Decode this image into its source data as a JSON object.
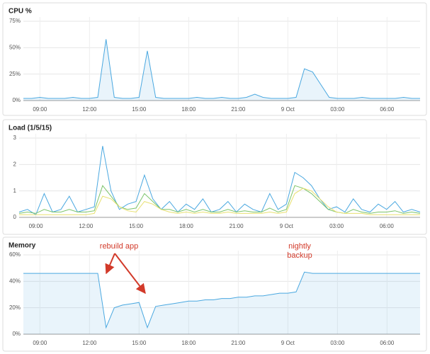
{
  "chart_data": [
    {
      "type": "area",
      "title": "CPU %",
      "x": [
        "08:00",
        "08:30",
        "09:00",
        "09:30",
        "10:00",
        "10:30",
        "11:00",
        "11:30",
        "12:00",
        "12:30",
        "13:00",
        "13:30",
        "14:00",
        "14:30",
        "15:00",
        "15:30",
        "16:00",
        "16:30",
        "17:00",
        "17:30",
        "18:00",
        "18:30",
        "19:00",
        "19:30",
        "20:00",
        "20:30",
        "21:00",
        "21:30",
        "22:00",
        "22:30",
        "23:00",
        "23:30",
        "00:00",
        "00:30",
        "01:00",
        "01:30",
        "02:00",
        "02:30",
        "03:00",
        "03:30",
        "04:00",
        "04:30",
        "05:00",
        "05:30",
        "06:00",
        "06:30",
        "07:00",
        "07:30",
        "08:00"
      ],
      "series": [
        {
          "color": "#4aa8e0",
          "values": [
            2,
            2,
            3,
            2,
            2,
            2,
            3,
            2,
            2,
            3,
            58,
            3,
            2,
            2,
            3,
            47,
            3,
            2,
            2,
            2,
            2,
            3,
            2,
            2,
            3,
            2,
            2,
            3,
            6,
            3,
            2,
            2,
            2,
            3,
            30,
            27,
            15,
            3,
            2,
            2,
            2,
            3,
            2,
            2,
            2,
            2,
            3,
            2,
            2
          ]
        }
      ],
      "ylim": [
        0,
        75
      ],
      "yticks": [
        {
          "value": 0,
          "label": "0%"
        },
        {
          "value": 25,
          "label": "25%"
        },
        {
          "value": 50,
          "label": "50%"
        },
        {
          "value": 75,
          "label": "75%"
        }
      ],
      "xticks": [
        "09:00",
        "12:00",
        "15:00",
        "18:00",
        "21:00",
        {
          "value": "00:00",
          "label": "9 Oct"
        },
        "03:00",
        "06:00"
      ]
    },
    {
      "type": "line",
      "title": "Load (1/5/15)",
      "x": [
        "08:00",
        "08:30",
        "09:00",
        "09:30",
        "10:00",
        "10:30",
        "11:00",
        "11:30",
        "12:00",
        "12:30",
        "13:00",
        "13:30",
        "14:00",
        "14:30",
        "15:00",
        "15:30",
        "16:00",
        "16:30",
        "17:00",
        "17:30",
        "18:00",
        "18:30",
        "19:00",
        "19:30",
        "20:00",
        "20:30",
        "21:00",
        "21:30",
        "22:00",
        "22:30",
        "23:00",
        "23:30",
        "00:00",
        "00:30",
        "01:00",
        "01:30",
        "02:00",
        "02:30",
        "03:00",
        "03:30",
        "04:00",
        "04:30",
        "05:00",
        "05:30",
        "06:00",
        "06:30",
        "07:00",
        "07:30",
        "08:00"
      ],
      "series": [
        {
          "color": "#4aa8e0",
          "values": [
            0.2,
            0.3,
            0.1,
            0.9,
            0.2,
            0.3,
            0.8,
            0.2,
            0.3,
            0.4,
            2.7,
            1.0,
            0.3,
            0.5,
            0.6,
            1.6,
            0.7,
            0.3,
            0.6,
            0.2,
            0.5,
            0.3,
            0.7,
            0.2,
            0.3,
            0.6,
            0.2,
            0.5,
            0.3,
            0.2,
            0.9,
            0.3,
            0.5,
            1.7,
            1.5,
            1.2,
            0.7,
            0.3,
            0.4,
            0.2,
            0.7,
            0.3,
            0.2,
            0.5,
            0.3,
            0.6,
            0.2,
            0.3,
            0.2
          ]
        },
        {
          "color": "#7cc46a",
          "values": [
            0.15,
            0.2,
            0.15,
            0.3,
            0.2,
            0.2,
            0.3,
            0.2,
            0.2,
            0.25,
            1.2,
            0.8,
            0.4,
            0.3,
            0.35,
            0.9,
            0.6,
            0.3,
            0.3,
            0.2,
            0.3,
            0.2,
            0.3,
            0.2,
            0.2,
            0.3,
            0.2,
            0.25,
            0.2,
            0.2,
            0.35,
            0.2,
            0.3,
            1.2,
            1.1,
            0.9,
            0.6,
            0.3,
            0.2,
            0.15,
            0.3,
            0.2,
            0.15,
            0.2,
            0.2,
            0.25,
            0.15,
            0.2,
            0.15
          ]
        },
        {
          "color": "#e8e070",
          "values": [
            0.1,
            0.1,
            0.1,
            0.1,
            0.1,
            0.1,
            0.1,
            0.1,
            0.1,
            0.15,
            0.8,
            0.7,
            0.4,
            0.25,
            0.2,
            0.6,
            0.5,
            0.3,
            0.2,
            0.15,
            0.2,
            0.15,
            0.2,
            0.15,
            0.15,
            0.2,
            0.15,
            0.15,
            0.15,
            0.15,
            0.2,
            0.15,
            0.2,
            0.9,
            1.1,
            1.0,
            0.7,
            0.4,
            0.2,
            0.15,
            0.15,
            0.15,
            0.1,
            0.1,
            0.1,
            0.1,
            0.1,
            0.1,
            0.1
          ]
        }
      ],
      "ylim": [
        0,
        3
      ],
      "yticks": [
        0,
        1,
        2,
        3
      ],
      "xticks": [
        "09:00",
        "12:00",
        "15:00",
        "18:00",
        "21:00",
        {
          "value": "00:00",
          "label": "9 Oct"
        },
        "03:00",
        "06:00"
      ]
    },
    {
      "type": "area",
      "title": "Memory",
      "x": [
        "08:00",
        "08:30",
        "09:00",
        "09:30",
        "10:00",
        "10:30",
        "11:00",
        "11:30",
        "12:00",
        "12:30",
        "13:00",
        "13:30",
        "14:00",
        "14:30",
        "15:00",
        "15:30",
        "16:00",
        "16:30",
        "17:00",
        "17:30",
        "18:00",
        "18:30",
        "19:00",
        "19:30",
        "20:00",
        "20:30",
        "21:00",
        "21:30",
        "22:00",
        "22:30",
        "23:00",
        "23:30",
        "00:00",
        "00:30",
        "01:00",
        "01:30",
        "02:00",
        "02:30",
        "03:00",
        "03:30",
        "04:00",
        "04:30",
        "05:00",
        "05:30",
        "06:00",
        "06:30",
        "07:00",
        "07:30",
        "08:00"
      ],
      "series": [
        {
          "color": "#4aa8e0",
          "values": [
            46,
            46,
            46,
            46,
            46,
            46,
            46,
            46,
            46,
            46,
            5,
            20,
            22,
            23,
            24,
            5,
            21,
            22,
            23,
            24,
            25,
            25,
            26,
            26,
            27,
            27,
            28,
            28,
            29,
            29,
            30,
            31,
            31,
            32,
            47,
            46,
            46,
            46,
            46,
            46,
            46,
            46,
            46,
            46,
            46,
            46,
            46,
            46,
            46
          ]
        }
      ],
      "ylim": [
        0,
        60
      ],
      "yticks": [
        {
          "value": 0,
          "label": "0%"
        },
        {
          "value": 20,
          "label": "20%"
        },
        {
          "value": 40,
          "label": "40%"
        },
        {
          "value": 60,
          "label": "60%"
        }
      ],
      "xticks": [
        "09:00",
        "12:00",
        "15:00",
        "18:00",
        "21:00",
        {
          "value": "00:00",
          "label": "9 Oct"
        },
        "03:00",
        "06:00"
      ],
      "annotations": [
        "rebuild app",
        "nightly backup"
      ]
    }
  ]
}
